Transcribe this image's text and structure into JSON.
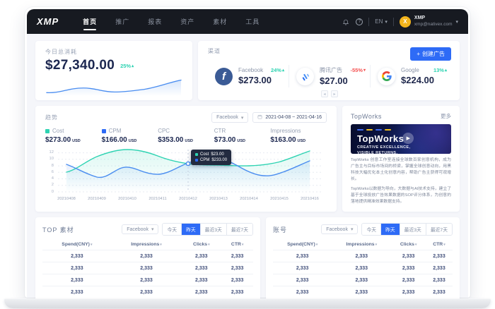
{
  "navbar": {
    "logo": "XMP",
    "items": [
      {
        "label": "首页",
        "active": true
      },
      {
        "label": "推广"
      },
      {
        "label": "报表"
      },
      {
        "label": "资产"
      },
      {
        "label": "素材"
      },
      {
        "label": "工具"
      }
    ],
    "language": "EN",
    "user": {
      "name": "XMP",
      "email": "xmp@nativex.com",
      "avatar_letter": "X"
    }
  },
  "today": {
    "label": "今日总消耗",
    "value": "$27,340.00",
    "change": "25%",
    "trend": "up"
  },
  "channels": {
    "title": "渠道",
    "create_button": "创建广告",
    "items": [
      {
        "name": "Facebook",
        "value": "$273.00",
        "change": "24%",
        "direction": "up"
      },
      {
        "name": "腾讯广告",
        "value": "$27.00",
        "change": "-55%",
        "direction": "down"
      },
      {
        "name": "Google",
        "value": "$224.00",
        "change": "13%",
        "direction": "up"
      }
    ]
  },
  "trend": {
    "title": "趋势",
    "filter": "Facebook",
    "date_range": "2021-04-08 ~ 2021-04-16",
    "metrics": [
      {
        "label": "Cost",
        "value": "$273.00",
        "unit": "USD",
        "swatch": "#2ed3b2"
      },
      {
        "label": "CPM",
        "value": "$166.00",
        "unit": "USD",
        "swatch": "#2e6bf6"
      },
      {
        "label": "CPC",
        "value": "$353.00",
        "unit": "USD"
      },
      {
        "label": "CTR",
        "value": "$73.00",
        "unit": "USD"
      },
      {
        "label": "Impressions",
        "value": "$163.00",
        "unit": "USD"
      }
    ],
    "tooltip": {
      "rows": [
        {
          "label": "Cost",
          "value": "$23.00",
          "color": "#2ed3b2"
        },
        {
          "label": "CPM",
          "value": "$233.00",
          "color": "#2e6bf6"
        }
      ]
    }
  },
  "chart_data": [
    {
      "id": "today-spend-sparkline",
      "type": "line",
      "x": [],
      "series": [
        {
          "name": "今日总消耗",
          "color": "#4a8df0",
          "values": [
            5,
            5.2,
            6.5,
            6,
            5.8,
            6,
            6.8,
            8.5,
            11
          ]
        }
      ],
      "grid": false,
      "legend_position": "none"
    },
    {
      "id": "trend-chart",
      "type": "line",
      "x": [
        "20210408",
        "20210409",
        "20210410",
        "20210411",
        "20210412",
        "20210413",
        "20210414",
        "20210415",
        "20210416"
      ],
      "yticks": [
        0,
        2,
        4,
        6,
        8,
        10,
        12
      ],
      "ylim": [
        0,
        13
      ],
      "grid": true,
      "legend_position": "top-metrics",
      "series": [
        {
          "name": "Cost",
          "color": "#2ed3b2",
          "values": [
            6,
            10.5,
            13,
            11,
            8.7,
            8.2,
            8,
            9.2,
            12.6
          ]
        },
        {
          "name": "CPM",
          "color": "#4a8df0",
          "values": [
            8.5,
            4.5,
            7.8,
            5.5,
            9,
            10.5,
            5,
            5.8,
            9.5
          ]
        }
      ],
      "tooltip_x": "20210412"
    }
  ],
  "topworks": {
    "title": "TopWorks",
    "more": "更多",
    "banner": {
      "brand": "TopWorks",
      "tagline_line1": "CREATIVE EXCELLENCE,",
      "tagline_line2": "VISIBLE RETURNS."
    },
    "paragraphs": [
      "TopWorks 创意工作室连接全球数百家创意机构，成为广告主与目标市场间的桥梁，掌握全球创意动向，用黑科技大幅优化本土化创意内容，帮助广告主获得可观增长。",
      "TopWorks以数据为导向，大数据与AI技术支持，建立了基于全球投放广告效果数据的SOP评分体系，为创意的落地提供精准效果数据支持。"
    ]
  },
  "tables": {
    "filter": "Facebook",
    "ranges": [
      "今天",
      "昨天",
      "最近3天",
      "最近7天"
    ],
    "active_range": "昨天",
    "columns": [
      "Spend(CNY)",
      "Impressions",
      "Clicks",
      "CTR"
    ],
    "cell_value": "2,333",
    "row_count": 4,
    "left_title": "TOP 素材",
    "right_title": "账号"
  },
  "icons": {
    "caret_down": "▾",
    "arrow_up": "▴",
    "arrow_down": "▾",
    "prev": "◂",
    "next": "▸",
    "plus": "+",
    "play": "▶",
    "help": "?"
  },
  "colors": {
    "accent": "#2e6bf6",
    "positive": "#2ed3b2",
    "negative": "#f55353",
    "navy": "#1c2750",
    "navbar": "#171a21"
  }
}
